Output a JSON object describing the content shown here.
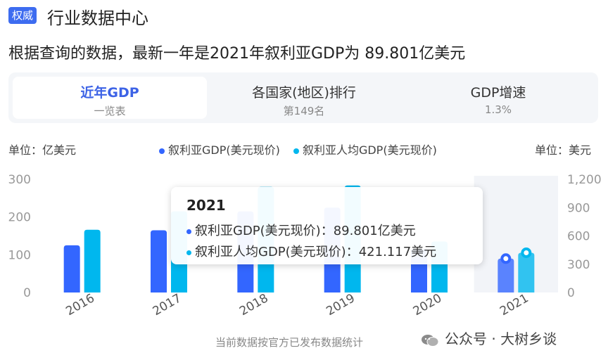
{
  "header": {
    "badge": "权威",
    "title": "行业数据中心"
  },
  "summary": "根据查询的数据，最新一年是2021年叙利亚GDP为 89.801亿美元",
  "tabs": [
    {
      "label": "近年GDP",
      "sub": "一览表",
      "active": true
    },
    {
      "label": "各国家(地区)排行",
      "sub": "第149名",
      "active": false
    },
    {
      "label": "GDP增速",
      "sub": "1.3%",
      "active": false
    }
  ],
  "chart_data": {
    "type": "bar",
    "categories": [
      "2016",
      "2017",
      "2018",
      "2019",
      "2020",
      "2021"
    ],
    "series": [
      {
        "name": "叙利亚GDP(美元现价)",
        "values": [
          125,
          165,
          215,
          225,
          115,
          89.801
        ],
        "color": "#3366ff",
        "axis": "left"
      },
      {
        "name": "叙利亚人均GDP(美元现价)",
        "values": [
          665,
          860,
          1120,
          1135,
          540,
          421.117
        ],
        "color": "#00b7ee",
        "axis": "right"
      }
    ],
    "ylabel_left": "单位：亿美元",
    "ylabel_right": "单位：美元",
    "yticks_left": [
      "300",
      "200",
      "100",
      "0"
    ],
    "yticks_right": [
      "1,200",
      "900",
      "600",
      "300",
      "0"
    ],
    "ylim_left": [
      0,
      300
    ],
    "ylim_right": [
      0,
      1200
    ],
    "highlight_category": "2021",
    "grid": false
  },
  "tooltip": {
    "title": "2021",
    "rows": [
      {
        "text": "叙利亚GDP(美元现价)：89.801亿美元",
        "color": "#3366ff"
      },
      {
        "text": "叙利亚人均GDP(美元现价)：421.117美元",
        "color": "#00b7ee"
      }
    ]
  },
  "footer": {
    "source": "当前数据按官方已发布数据统计",
    "watermark": "公众号 · 大树乡谈"
  }
}
